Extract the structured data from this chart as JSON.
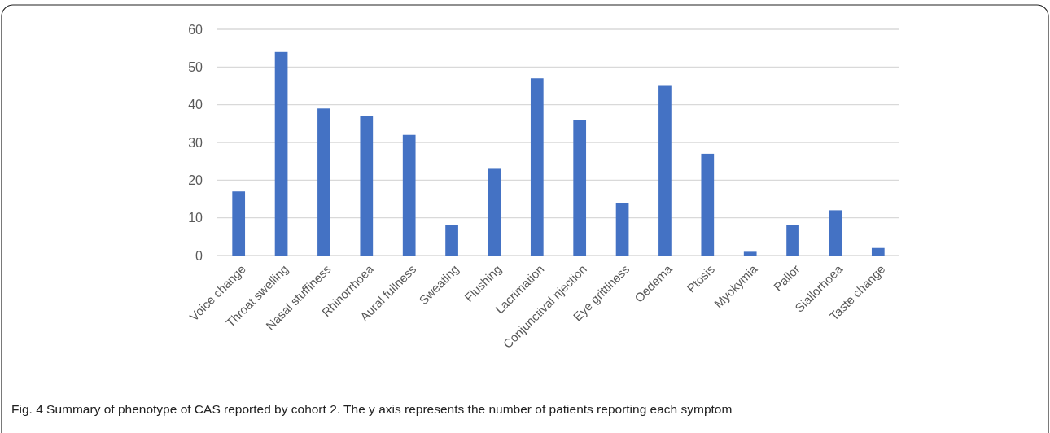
{
  "chart_data": {
    "type": "bar",
    "categories": [
      "Voice change",
      "Throat swelling",
      "Nasal stuffiness",
      "Rhinorrhoea",
      "Aural fullness",
      "Sweating",
      "Flushing",
      "Lacrimation",
      "Conjunctival njection",
      "Eye grittiness",
      "Oedema",
      "Ptosis",
      "Myokymia",
      "Pallor",
      "Siallorhoea",
      "Taste change"
    ],
    "values": [
      17,
      54,
      39,
      37,
      32,
      8,
      23,
      47,
      36,
      14,
      45,
      27,
      1,
      8,
      12,
      2
    ],
    "color": "#4472c4",
    "ylim": [
      0,
      60
    ],
    "yticks": [
      0,
      10,
      20,
      30,
      40,
      50,
      60
    ],
    "grid": "y",
    "annotations": [
      "Fig. 4 Summary of phenotype of CAS reported by cohort 2. The y axis represents the number of patients reporting each symptom"
    ]
  }
}
